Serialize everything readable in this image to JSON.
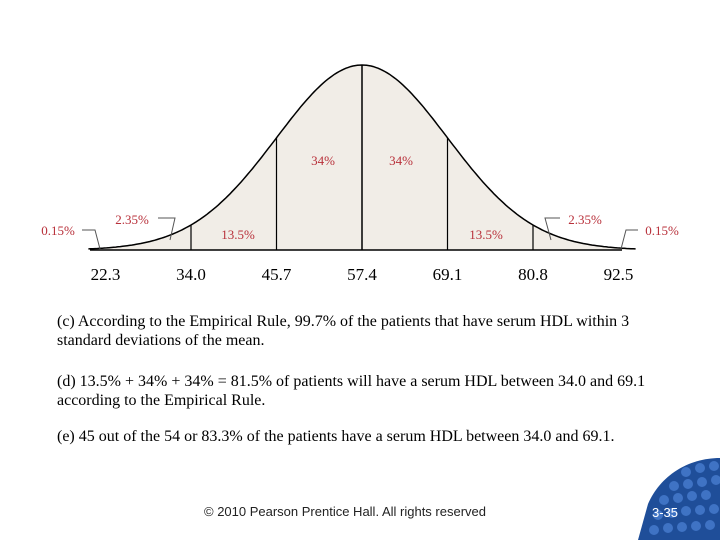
{
  "chart_data": {
    "type": "area",
    "title": "",
    "xlabel": "",
    "ylabel": "",
    "x_ticks": [
      "22.3",
      "34.0",
      "45.7",
      "57.4",
      "69.1",
      "80.8",
      "92.5"
    ],
    "mean": 57.4,
    "sd": 11.7,
    "regions": [
      {
        "from": 10.6,
        "to": 22.3,
        "label": "0.15%"
      },
      {
        "from": 22.3,
        "to": 34.0,
        "label": "2.35%"
      },
      {
        "from": 34.0,
        "to": 45.7,
        "label": "13.5%"
      },
      {
        "from": 45.7,
        "to": 57.4,
        "label": "34%"
      },
      {
        "from": 57.4,
        "to": 69.1,
        "label": "34%"
      },
      {
        "from": 69.1,
        "to": 80.8,
        "label": "13.5%"
      },
      {
        "from": 80.8,
        "to": 92.5,
        "label": "2.35%"
      },
      {
        "from": 92.5,
        "to": 104.2,
        "label": "0.15%"
      }
    ],
    "colors": {
      "fill": "#f1ede7",
      "curve": "#000000",
      "labels": "#b8303a"
    }
  },
  "text": {
    "c": "(c) According to the Empirical Rule, 99.7% of the patients that have serum HDL within 3 standard deviations of the mean.",
    "d": "(d) 13.5% + 34% + 34% = 81.5% of patients will have a serum HDL between 34.0 and 69.1 according to the Empirical Rule.",
    "e": "(e) 45 out of the 54 or 83.3% of the patients have a serum HDL between 34.0 and 69.1."
  },
  "footer": "© 2010 Pearson Prentice Hall. All rights reserved",
  "slide_number": "3-35",
  "logo": {
    "colors": [
      "#1f4e99",
      "#3f73c4"
    ]
  }
}
